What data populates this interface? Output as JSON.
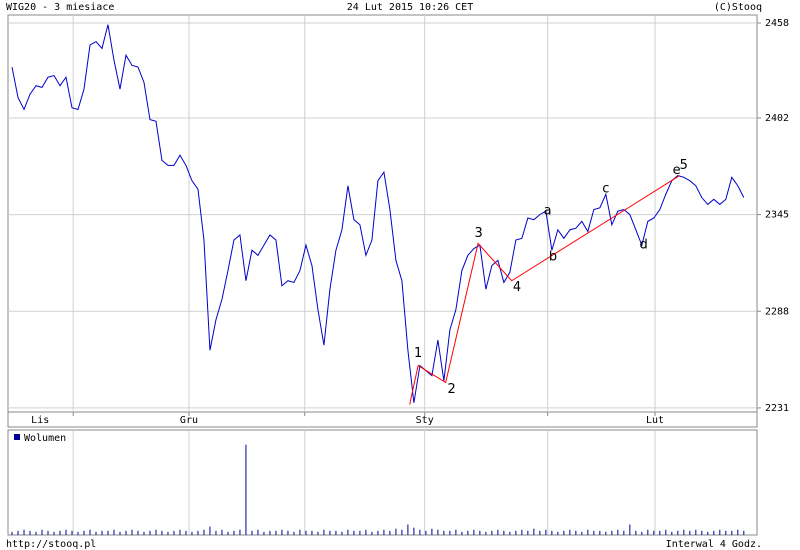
{
  "header": {
    "title": "WIG20 - 3 miesiace",
    "date": "24 Lut 2015 10:26 CET",
    "source": "(C)Stooq"
  },
  "footer": {
    "url": "http://stooq.pl",
    "interval": "Interwal 4 Godz."
  },
  "chart_data": [
    {
      "type": "line",
      "series": [
        {
          "color": "#0000cc",
          "values": [
            2432,
            2414,
            2407,
            2416,
            2421,
            2420,
            2426,
            2427,
            2421,
            2426,
            2408,
            2407,
            2419,
            2445,
            2447,
            2443,
            2457,
            2436,
            2419,
            2439,
            2433,
            2432,
            2423,
            2401,
            2400,
            2377,
            2374,
            2374,
            2380,
            2374,
            2365,
            2360,
            2330,
            2265,
            2283,
            2295,
            2312,
            2330,
            2333,
            2306,
            2324,
            2321,
            2327,
            2333,
            2330,
            2303,
            2306,
            2305,
            2312,
            2327,
            2315,
            2289,
            2268,
            2301,
            2324,
            2336,
            2362,
            2342,
            2339,
            2321,
            2330,
            2365,
            2370,
            2348,
            2318,
            2306,
            2265,
            2234,
            2256,
            2253,
            2250,
            2271,
            2247,
            2277,
            2289,
            2312,
            2321,
            2325,
            2327,
            2301,
            2315,
            2318,
            2305,
            2311,
            2330,
            2331,
            2343,
            2342,
            2345,
            2347,
            2324,
            2336,
            2331,
            2336,
            2337,
            2341,
            2335,
            2348,
            2349,
            2357,
            2339,
            2347,
            2348,
            2345,
            2336,
            2327,
            2341,
            2343,
            2348,
            2357,
            2365,
            2368,
            2367,
            2365,
            2362,
            2355,
            2351,
            2354,
            2351,
            2354,
            2367,
            2362,
            2355
          ]
        }
      ],
      "wave": {
        "color": "#ff0000",
        "x": [
          66.3,
          67.7,
          72.3,
          77.7,
          83.3,
          111.3
        ],
        "values": [
          2233,
          2256,
          2246,
          2328,
          2306,
          2368
        ]
      },
      "annotations": [
        {
          "text": "1",
          "x": 67.7,
          "y": 2263
        },
        {
          "text": "2",
          "x": 73.3,
          "y": 2242
        },
        {
          "text": "3",
          "x": 77.8,
          "y": 2334
        },
        {
          "text": "4",
          "x": 84.2,
          "y": 2302
        },
        {
          "text": "5",
          "x": 112,
          "y": 2374
        },
        {
          "text": "a",
          "x": 89.3,
          "y": 2347
        },
        {
          "text": "b",
          "x": 90.2,
          "y": 2320
        },
        {
          "text": "c",
          "x": 99,
          "y": 2360
        },
        {
          "text": "d",
          "x": 105.3,
          "y": 2327
        },
        {
          "text": "e",
          "x": 110.8,
          "y": 2371
        }
      ],
      "xlim": [
        -0.67,
        124.2
      ],
      "xticks": [
        {
          "value": 4.7,
          "label": "Lis"
        },
        {
          "value": 29.5,
          "label": "Gru"
        },
        {
          "value": 68.8,
          "label": "Sty"
        },
        {
          "value": 107.2,
          "label": "Lut"
        }
      ],
      "xgrid": [
        10.2,
        29.5,
        48.8,
        68.8,
        89.3,
        107.2
      ],
      "ylim": [
        2228.6,
        2462.7
      ],
      "yticks": [
        2231,
        2288,
        2345,
        2402,
        2458
      ],
      "grid": true
    },
    {
      "type": "bar",
      "series": [
        {
          "name": "Wolumen",
          "color": "#000099",
          "values": [
            3,
            4,
            5,
            4,
            3,
            5,
            4,
            3,
            4,
            5,
            4,
            3,
            4,
            5,
            3,
            4,
            4,
            5,
            3,
            4,
            5,
            4,
            3,
            4,
            5,
            4,
            3,
            4,
            5,
            4,
            3,
            4,
            5,
            8,
            4,
            5,
            3,
            4,
            5,
            86,
            4,
            5,
            3,
            4,
            4,
            5,
            4,
            3,
            5,
            4,
            4,
            3,
            5,
            4,
            4,
            3,
            5,
            4,
            4,
            5,
            3,
            4,
            5,
            4,
            6,
            5,
            10,
            7,
            5,
            4,
            6,
            5,
            4,
            4,
            5,
            3,
            4,
            5,
            4,
            3,
            4,
            5,
            4,
            3,
            4,
            5,
            4,
            6,
            4,
            5,
            4,
            3,
            4,
            5,
            4,
            3,
            5,
            4,
            4,
            3,
            4,
            5,
            4,
            10,
            4,
            3,
            5,
            4,
            4,
            5,
            3,
            4,
            5,
            4,
            5,
            4,
            3,
            4,
            5,
            4,
            4,
            5,
            4
          ]
        }
      ],
      "xlim": [
        -0.67,
        124.2
      ],
      "ylim": [
        0,
        100
      ]
    }
  ]
}
